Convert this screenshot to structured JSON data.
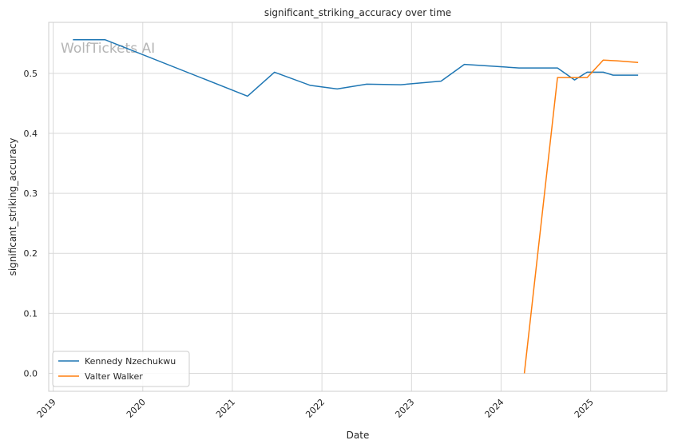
{
  "chart_data": {
    "type": "line",
    "title": "significant_striking_accuracy over time",
    "xlabel": "Date",
    "ylabel": "significant_striking_accuracy",
    "watermark": "WolfTickets AI",
    "xlim": [
      2018.95,
      2025.85
    ],
    "ylim": [
      -0.03,
      0.585
    ],
    "x_ticks": [
      2019,
      2020,
      2021,
      2022,
      2023,
      2024,
      2025
    ],
    "x_tick_labels": [
      "2019",
      "2020",
      "2021",
      "2022",
      "2023",
      "2024",
      "2025"
    ],
    "y_ticks": [
      0.0,
      0.1,
      0.2,
      0.3,
      0.4,
      0.5
    ],
    "y_tick_labels": [
      "0.0",
      "0.1",
      "0.2",
      "0.3",
      "0.4",
      "0.5"
    ],
    "grid": true,
    "legend_position": "lower-left",
    "series": [
      {
        "name": "Kennedy Nzechukwu",
        "color": "#1f77b4",
        "points": [
          [
            2019.22,
            0.556
          ],
          [
            2019.58,
            0.556
          ],
          [
            2021.17,
            0.462
          ],
          [
            2021.47,
            0.502
          ],
          [
            2021.87,
            0.48
          ],
          [
            2022.17,
            0.474
          ],
          [
            2022.5,
            0.482
          ],
          [
            2022.88,
            0.481
          ],
          [
            2023.33,
            0.487
          ],
          [
            2023.59,
            0.515
          ],
          [
            2024.2,
            0.509
          ],
          [
            2024.63,
            0.509
          ],
          [
            2024.82,
            0.489
          ],
          [
            2024.96,
            0.502
          ],
          [
            2025.14,
            0.502
          ],
          [
            2025.25,
            0.497
          ],
          [
            2025.53,
            0.497
          ]
        ]
      },
      {
        "name": "Valter Walker",
        "color": "#ff7f0e",
        "points": [
          [
            2024.26,
            0.0
          ],
          [
            2024.63,
            0.493
          ],
          [
            2024.96,
            0.493
          ],
          [
            2025.14,
            0.522
          ],
          [
            2025.29,
            0.521
          ],
          [
            2025.53,
            0.518
          ]
        ]
      }
    ]
  }
}
